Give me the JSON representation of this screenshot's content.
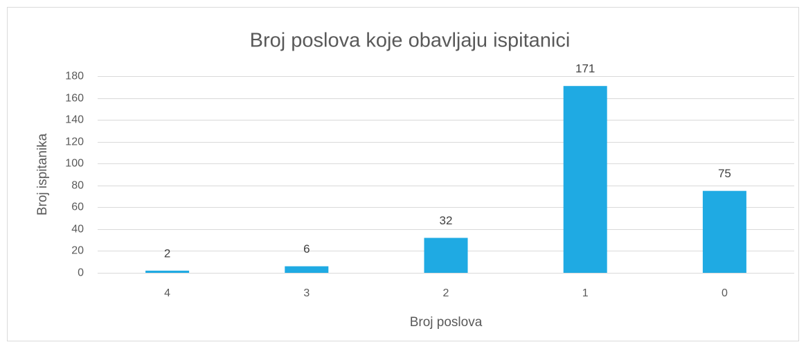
{
  "chart_data": {
    "type": "bar",
    "title": "Broj poslova koje obavljaju ispitanici",
    "xlabel": "Broj poslova",
    "ylabel": "Broj ispitanika",
    "categories": [
      "4",
      "3",
      "2",
      "1",
      "0"
    ],
    "values": [
      2,
      6,
      32,
      171,
      75
    ],
    "color": "#1faae3",
    "ylim": [
      0,
      180
    ],
    "yticks": [
      0,
      20,
      40,
      60,
      80,
      100,
      120,
      140,
      160,
      180
    ],
    "grid": true,
    "data_labels": true
  }
}
